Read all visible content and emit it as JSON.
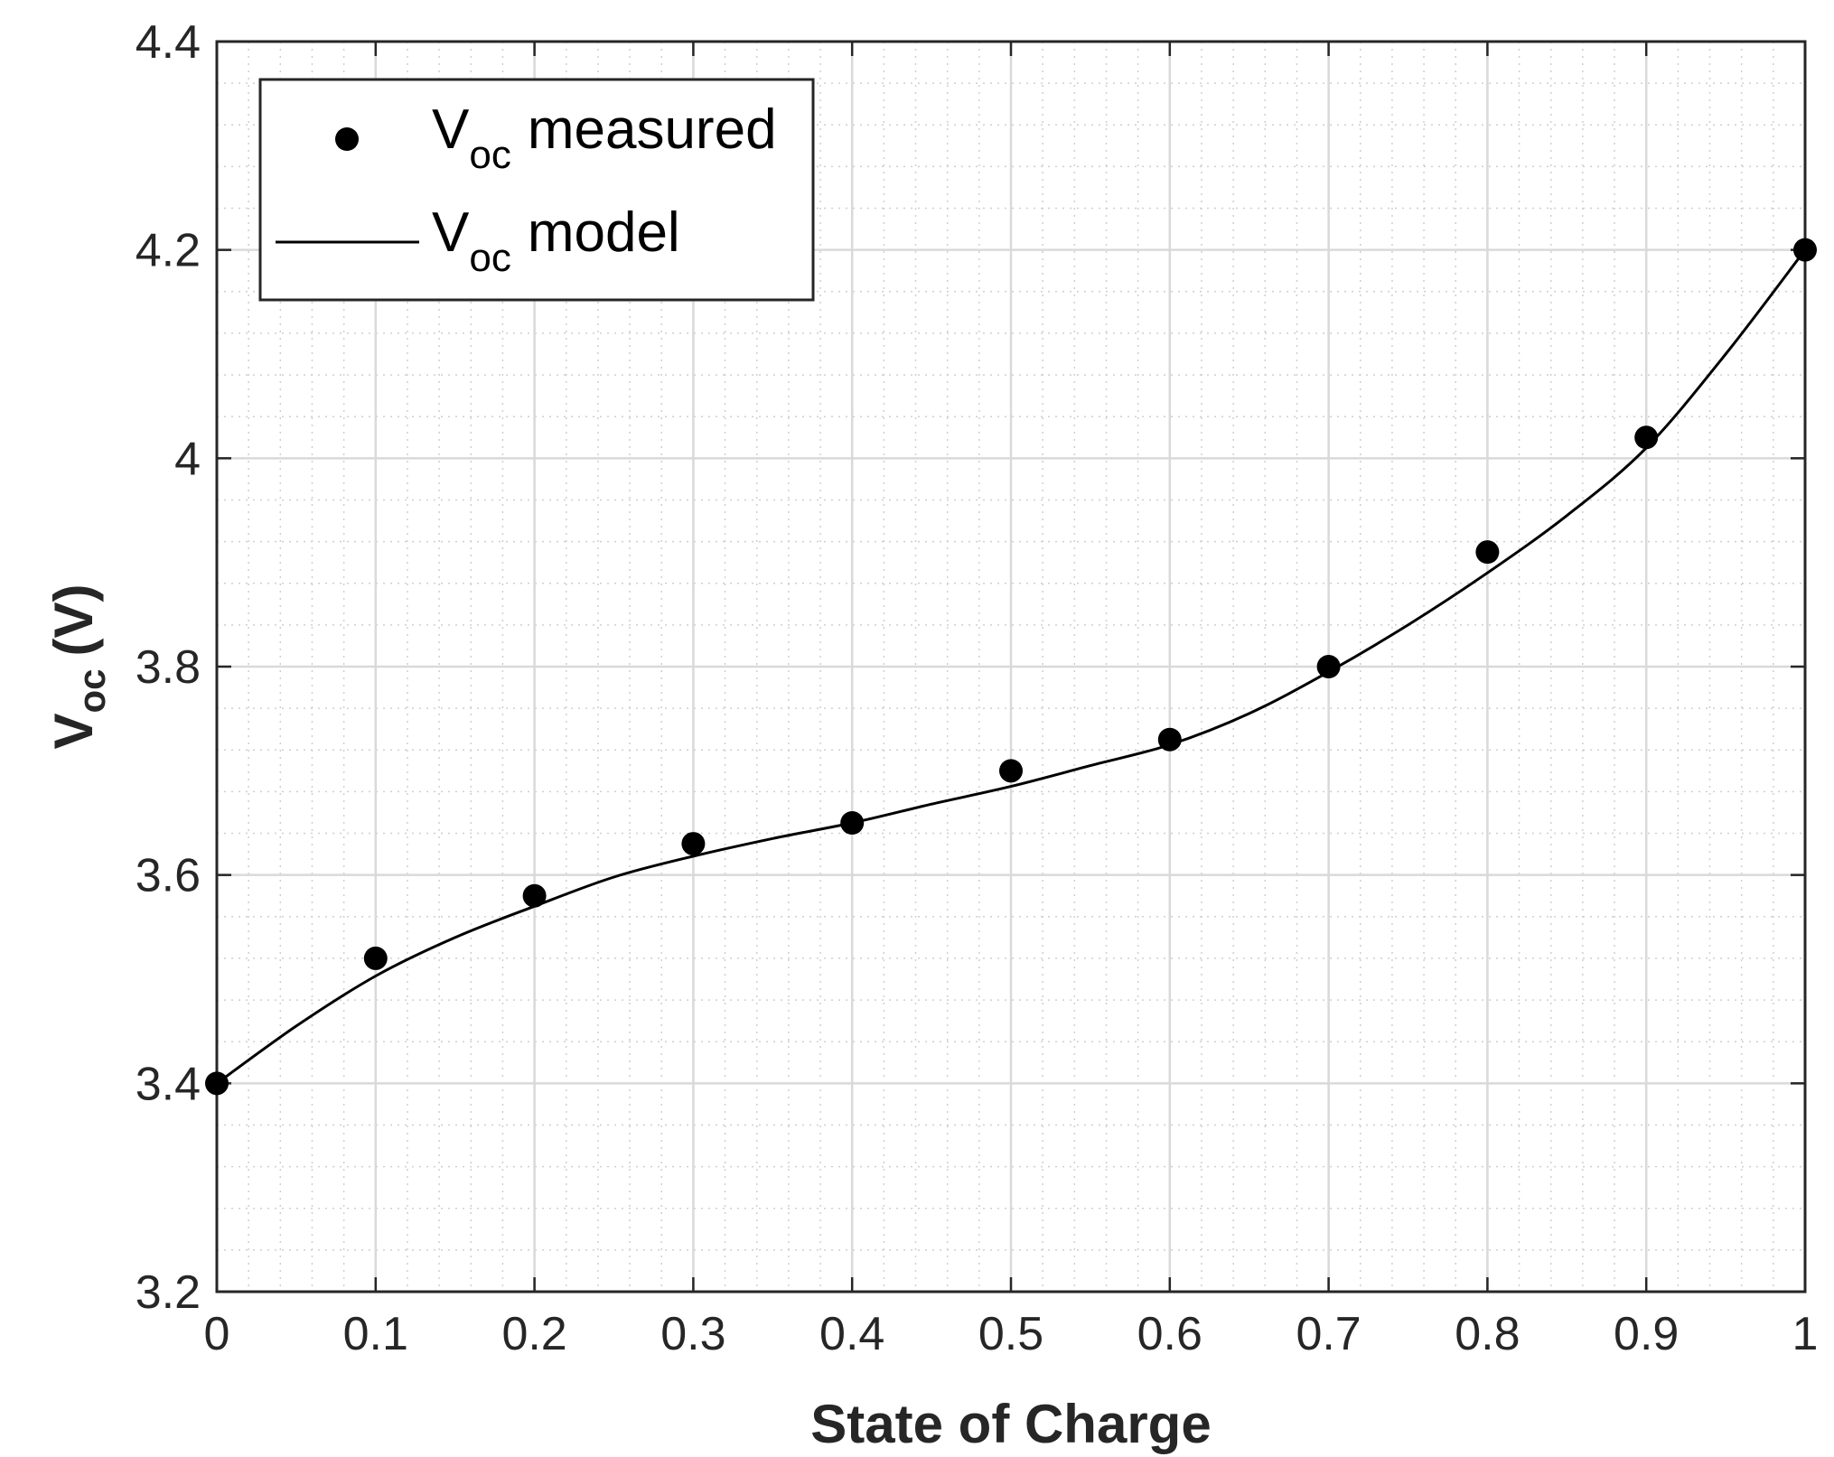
{
  "chart_data": {
    "type": "line",
    "xlabel": "State of Charge",
    "ylabel_main": "V",
    "ylabel_sub": "oc",
    "ylabel_unit": "(V)",
    "xlim": [
      0,
      1
    ],
    "ylim": [
      3.2,
      4.4
    ],
    "xticks": [
      0,
      0.1,
      0.2,
      0.3,
      0.4,
      0.5,
      0.6,
      0.7,
      0.8,
      0.9,
      1
    ],
    "xtick_labels": [
      "0",
      "0.1",
      "0.2",
      "0.3",
      "0.4",
      "0.5",
      "0.6",
      "0.7",
      "0.8",
      "0.9",
      "1"
    ],
    "yticks": [
      3.2,
      3.4,
      3.6,
      3.8,
      4.0,
      4.2,
      4.4
    ],
    "ytick_labels": [
      "3.2",
      "3.4",
      "3.6",
      "3.8",
      "4",
      "4.2",
      "4.4"
    ],
    "grid": true,
    "minor_grid": true,
    "legend_position": "top-left",
    "series": [
      {
        "name": "V_oc measured",
        "legend_main": "V",
        "legend_sub": "oc",
        "legend_rest": "measured",
        "kind": "scatter",
        "x": [
          0,
          0.1,
          0.2,
          0.3,
          0.4,
          0.5,
          0.6,
          0.7,
          0.8,
          0.9,
          1
        ],
        "y": [
          3.4,
          3.52,
          3.58,
          3.63,
          3.65,
          3.7,
          3.73,
          3.8,
          3.91,
          4.02,
          4.2
        ]
      },
      {
        "name": "V_oc model",
        "legend_main": "V",
        "legend_sub": "oc",
        "legend_rest": "model",
        "kind": "line",
        "x": [
          0,
          0.05,
          0.1,
          0.15,
          0.2,
          0.25,
          0.3,
          0.35,
          0.4,
          0.45,
          0.5,
          0.55,
          0.6,
          0.65,
          0.7,
          0.75,
          0.8,
          0.85,
          0.9,
          0.95,
          1
        ],
        "y": [
          3.4,
          3.455,
          3.503,
          3.54,
          3.57,
          3.598,
          3.618,
          3.635,
          3.65,
          3.668,
          3.685,
          3.705,
          3.725,
          3.755,
          3.795,
          3.84,
          3.89,
          3.945,
          4.01,
          4.1,
          4.2
        ]
      }
    ]
  },
  "colors": {
    "axis": "#262626",
    "grid_major": "#d9d9d9",
    "grid_minor": "#cfcfcf",
    "marker": "#000000",
    "line": "#000000"
  }
}
